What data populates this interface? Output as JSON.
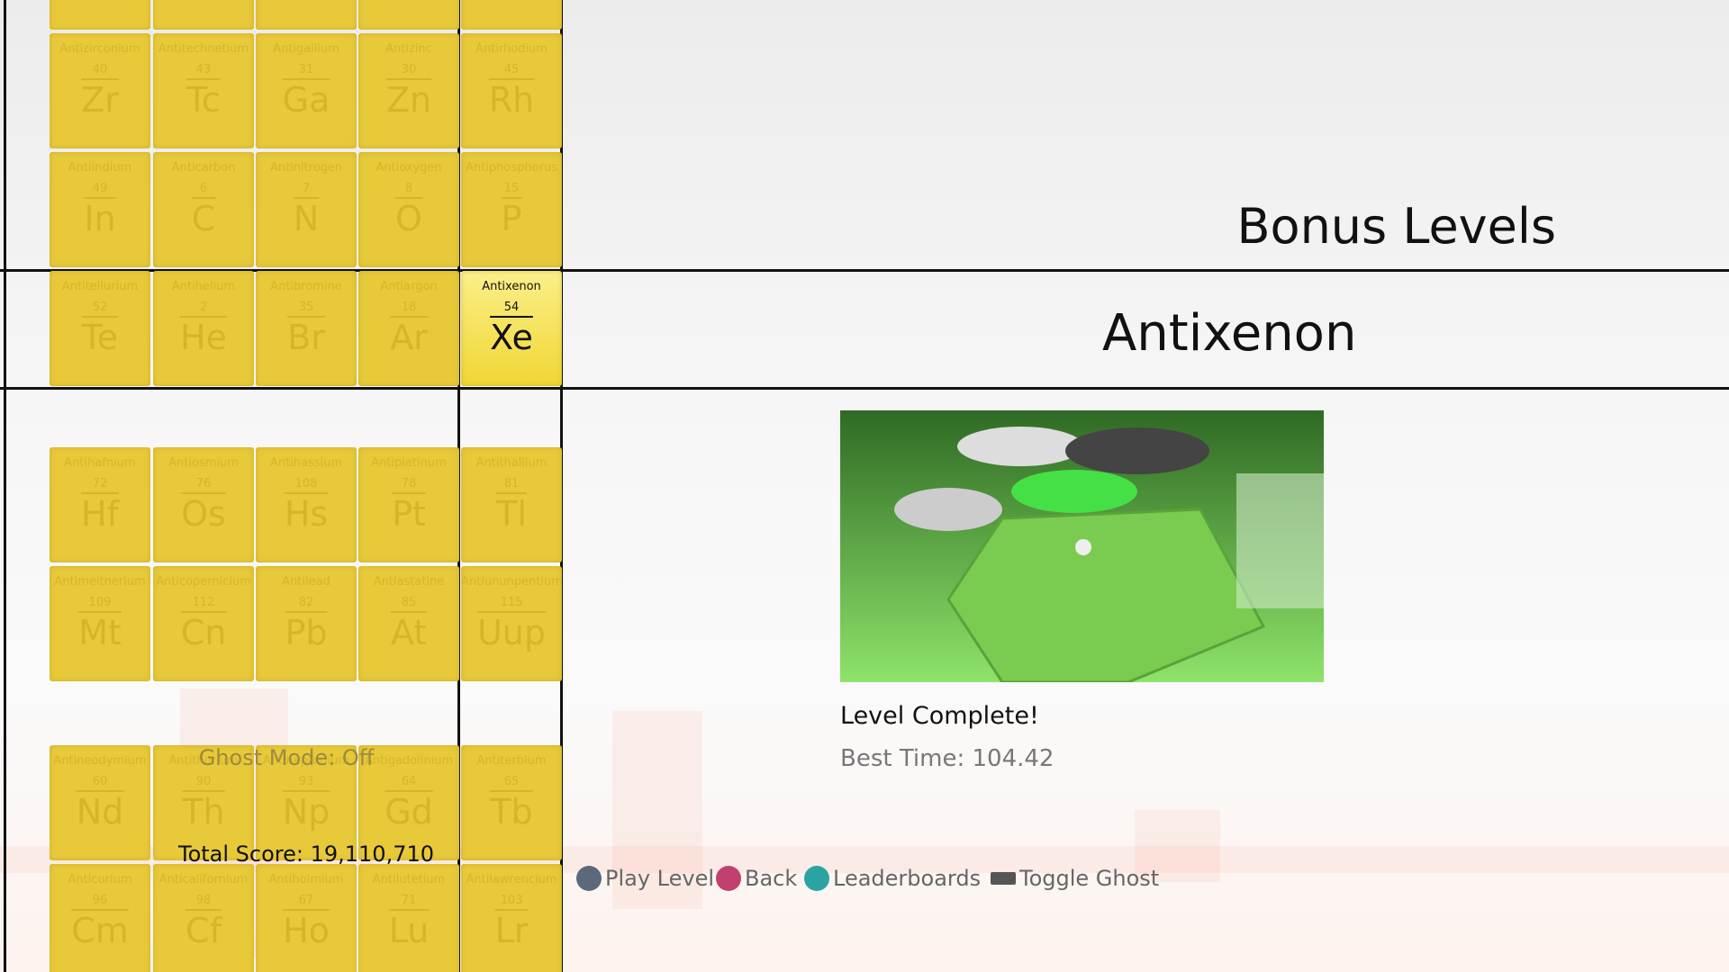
{
  "header": {
    "title": "Bonus Levels"
  },
  "level": {
    "name": "Antixenon",
    "status": "Level Complete!",
    "best_time": "Best Time: 104.42"
  },
  "ghost_mode": "Ghost Mode: Off",
  "total_score": "Total Score: 19,110,710",
  "controls": [
    "Play Level",
    "Back",
    "Leaderboards",
    "Toggle Ghost"
  ],
  "tiles": {
    "rows": [
      [
        {
          "name": "Antizirconium",
          "number": 40,
          "symbol": "Zr"
        },
        {
          "name": "Antitechnetium",
          "number": 43,
          "symbol": "Tc"
        },
        {
          "name": "Antigallium",
          "number": 31,
          "symbol": "Ga"
        },
        {
          "name": "Antizinc",
          "number": 30,
          "symbol": "Zn"
        },
        {
          "name": "Antirhodium",
          "number": 45,
          "symbol": "Rh"
        }
      ],
      [
        {
          "name": "Antiindium",
          "number": 49,
          "symbol": "In"
        },
        {
          "name": "Anticarbon",
          "number": 6,
          "symbol": "C"
        },
        {
          "name": "Antinitrogen",
          "number": 7,
          "symbol": "N"
        },
        {
          "name": "Antioxygen",
          "number": 8,
          "symbol": "O"
        },
        {
          "name": "Antiphosphorus",
          "number": 15,
          "symbol": "P"
        }
      ],
      [
        {
          "name": "Antitellurium",
          "number": 52,
          "symbol": "Te"
        },
        {
          "name": "Antihelium",
          "number": 2,
          "symbol": "He"
        },
        {
          "name": "Antibromine",
          "number": 35,
          "symbol": "Br"
        },
        {
          "name": "Antiargon",
          "number": 18,
          "symbol": "Ar"
        },
        {
          "name": "Antixenon",
          "number": 54,
          "symbol": "Xe"
        }
      ],
      [
        {
          "name": "Antihafnium",
          "number": 72,
          "symbol": "Hf"
        },
        {
          "name": "Antiosmium",
          "number": 76,
          "symbol": "Os"
        },
        {
          "name": "Antihassium",
          "number": 108,
          "symbol": "Hs"
        },
        {
          "name": "Antiplatinum",
          "number": 78,
          "symbol": "Pt"
        },
        {
          "name": "Antithallium",
          "number": 81,
          "symbol": "Tl"
        }
      ],
      [
        {
          "name": "Antimeitnerium",
          "number": 109,
          "symbol": "Mt"
        },
        {
          "name": "Anticopernicium",
          "number": 112,
          "symbol": "Cn"
        },
        {
          "name": "Antilead",
          "number": 82,
          "symbol": "Pb"
        },
        {
          "name": "Antiastatine",
          "number": 85,
          "symbol": "At"
        },
        {
          "name": "Antiununpentium",
          "number": 115,
          "symbol": "Uup"
        }
      ],
      [
        {
          "name": "Antineodymium",
          "number": 60,
          "symbol": "Nd"
        },
        {
          "name": "Antithorium",
          "number": 90,
          "symbol": "Th"
        },
        {
          "name": "Antineptunium",
          "number": 93,
          "symbol": "Np"
        },
        {
          "name": "Antigadolinium",
          "number": 64,
          "symbol": "Gd"
        },
        {
          "name": "Antiterbium",
          "number": 65,
          "symbol": "Tb"
        }
      ],
      [
        {
          "name": "Anticurium",
          "number": 96,
          "symbol": "Cm"
        },
        {
          "name": "Anticalifornium",
          "number": 98,
          "symbol": "Cf"
        },
        {
          "name": "Antiholmium",
          "number": 67,
          "symbol": "Ho"
        },
        {
          "name": "Antilutetium",
          "number": 71,
          "symbol": "Lu"
        },
        {
          "name": "Antilawrencium",
          "number": 103,
          "symbol": "Lr"
        }
      ]
    ]
  }
}
